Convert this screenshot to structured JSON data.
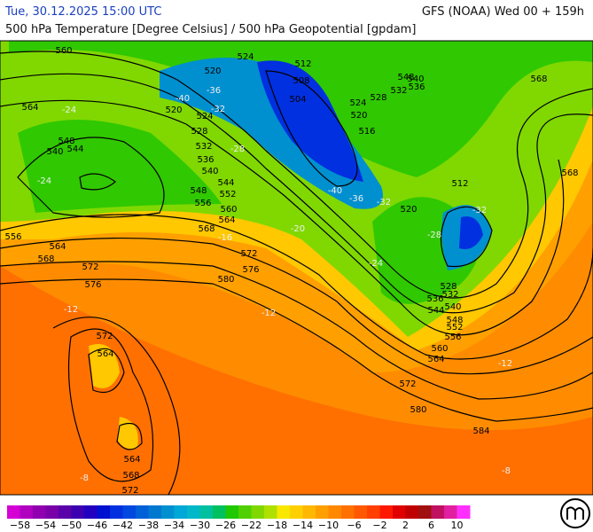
{
  "header": {
    "datetime": "Tue, 30.12.2025 15:00 UTC",
    "model": "GFS (NOAA) Wed 00 + 159h",
    "title": "500 hPa Temperature [Degree Celsius] / 500 hPa Geopotential [gpdam]"
  },
  "map": {
    "geopotential_labels": [
      "560",
      "524",
      "520",
      "564",
      "520",
      "524",
      "528",
      "532",
      "536",
      "540",
      "544",
      "548",
      "552",
      "556",
      "560",
      "564",
      "568",
      "548",
      "544",
      "540",
      "556",
      "564",
      "568",
      "572",
      "576",
      "572",
      "576",
      "580",
      "572",
      "564",
      "564",
      "568",
      "572",
      "508",
      "512",
      "504",
      "520",
      "516",
      "524",
      "528",
      "532",
      "536",
      "540",
      "548",
      "568",
      "568",
      "512",
      "520",
      "528",
      "532",
      "536",
      "540",
      "544",
      "548",
      "552",
      "556",
      "560",
      "564",
      "572",
      "580",
      "584"
    ],
    "temperature_labels": [
      "-40",
      "-36",
      "-32",
      "-28",
      "-24",
      "-24",
      "-40",
      "-36",
      "-32",
      "-28",
      "-32",
      "-24",
      "-20",
      "-16",
      "-12",
      "-12",
      "-8",
      "-12",
      "-8"
    ]
  },
  "colorbar": {
    "lim": [
      -60,
      12
    ],
    "colors": [
      "#d400d4",
      "#b000c0",
      "#9000b0",
      "#7a00a8",
      "#5a00a8",
      "#3c00b0",
      "#2200c0",
      "#0010d0",
      "#0030e0",
      "#0048e0",
      "#0060d8",
      "#0078d0",
      "#0090d0",
      "#00a8d8",
      "#00b8c8",
      "#00c0a0",
      "#00c060",
      "#20c800",
      "#50d000",
      "#80d800",
      "#b0e000",
      "#f8e800",
      "#ffd000",
      "#ffb800",
      "#ffa000",
      "#ff8800",
      "#ff7000",
      "#ff5800",
      "#ff4000",
      "#ff1800",
      "#e00000",
      "#c00000",
      "#a01010",
      "#c01060",
      "#e020a0",
      "#ff30ff"
    ],
    "ticks": [
      {
        "value": -58,
        "label": "−58"
      },
      {
        "value": -54,
        "label": "−54"
      },
      {
        "value": -50,
        "label": "−50"
      },
      {
        "value": -46,
        "label": "−46"
      },
      {
        "value": -42,
        "label": "−42"
      },
      {
        "value": -38,
        "label": "−38"
      },
      {
        "value": -34,
        "label": "−34"
      },
      {
        "value": -30,
        "label": "−30"
      },
      {
        "value": -26,
        "label": "−26"
      },
      {
        "value": -22,
        "label": "−22"
      },
      {
        "value": -18,
        "label": "−18"
      },
      {
        "value": -14,
        "label": "−14"
      },
      {
        "value": -10,
        "label": "−10"
      },
      {
        "value": -6,
        "label": "−6"
      },
      {
        "value": -2,
        "label": "−2"
      },
      2,
      6,
      10
    ]
  }
}
